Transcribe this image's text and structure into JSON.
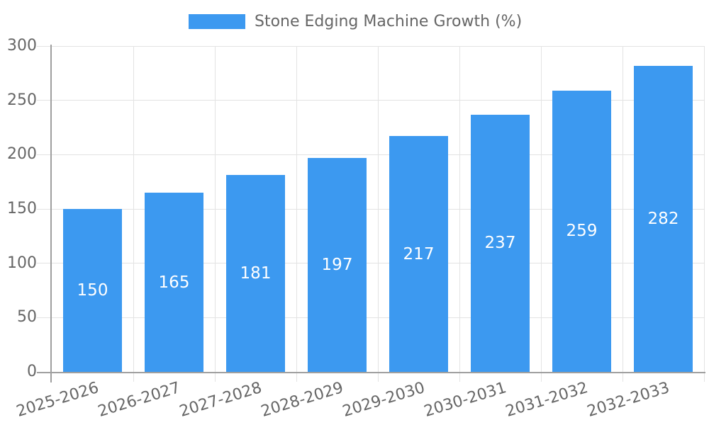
{
  "chart_data": {
    "type": "bar",
    "title": "",
    "legend": "Stone Edging Machine Growth (%)",
    "legend_position": "top",
    "categories": [
      "2025-2026",
      "2026-2027",
      "2027-2028",
      "2028-2029",
      "2029-2030",
      "2030-2031",
      "2031-2032",
      "2032-2033"
    ],
    "values": [
      150,
      165,
      181,
      197,
      217,
      237,
      259,
      282
    ],
    "xlabel": "",
    "ylabel": "",
    "ylim": [
      0,
      300
    ],
    "yticks": [
      0,
      50,
      100,
      150,
      200,
      250,
      300
    ],
    "grid": true,
    "bar_color": "#3c99f0",
    "value_label_color": "#ffffff",
    "axis_text_color": "#666666"
  }
}
